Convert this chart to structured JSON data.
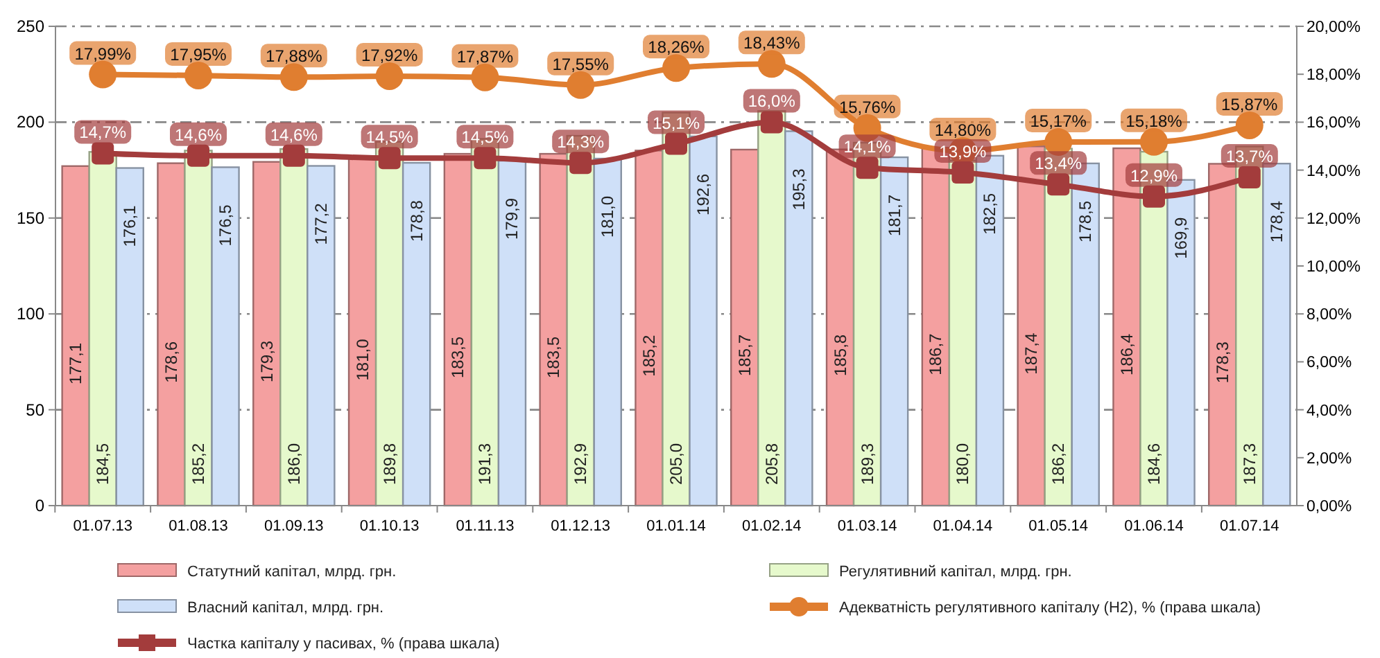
{
  "chart_data": {
    "type": "bar",
    "categories": [
      "01.07.13",
      "01.08.13",
      "01.09.13",
      "01.10.13",
      "01.11.13",
      "01.12.13",
      "01.01.14",
      "01.02.14",
      "01.03.14",
      "01.04.14",
      "01.05.14",
      "01.06.14",
      "01.07.14"
    ],
    "series": [
      {
        "name": "Статутний капітал, млрд. грн.",
        "color": "#f4a0a0",
        "values": [
          177.1,
          178.6,
          179.3,
          181.0,
          183.5,
          183.5,
          185.2,
          185.7,
          185.8,
          186.7,
          187.4,
          186.4,
          178.3
        ],
        "value_labels": [
          "177,1",
          "178,6",
          "179,3",
          "181,0",
          "183,5",
          "183,5",
          "185,2",
          "185,7",
          "185,8",
          "186,7",
          "187,4",
          "186,4",
          "178,3"
        ]
      },
      {
        "name": "Регулятивний капітал, млрд. грн.",
        "color": "#e6f9cc",
        "values": [
          184.5,
          185.2,
          186.0,
          189.8,
          191.3,
          192.9,
          205.0,
          205.8,
          189.3,
          180.0,
          186.2,
          184.6,
          187.3
        ],
        "value_labels": [
          "184,5",
          "185,2",
          "186,0",
          "189,8",
          "191,3",
          "192,9",
          "205,0",
          "205,8",
          "189,3",
          "180,0",
          "186,2",
          "184,6",
          "187,3"
        ]
      },
      {
        "name": "Власний капітал, млрд. грн.",
        "color": "#cfe0f8",
        "values": [
          176.1,
          176.5,
          177.2,
          178.8,
          179.9,
          181.0,
          192.6,
          195.3,
          181.7,
          182.5,
          178.5,
          169.9,
          178.4
        ],
        "value_labels": [
          "176,1",
          "176,5",
          "177,2",
          "178,8",
          "179,9",
          "181,0",
          "192,6",
          "195,3",
          "181,7",
          "182,5",
          "178,5",
          "169,9",
          "178,4"
        ]
      },
      {
        "name": "Адекватність регулятивного капіталу (Н2), % (права шкала)",
        "type": "line",
        "axis": "y2",
        "marker": "circle",
        "color": "#e07e30",
        "values": [
          17.99,
          17.95,
          17.88,
          17.92,
          17.87,
          17.55,
          18.26,
          18.43,
          15.76,
          14.8,
          15.17,
          15.18,
          15.87
        ],
        "value_labels": [
          "17,99%",
          "17,95%",
          "17,88%",
          "17,92%",
          "17,87%",
          "17,55%",
          "18,26%",
          "18,43%",
          "15,76%",
          "14,80%",
          "15,17%",
          "15,18%",
          "15,87%"
        ]
      },
      {
        "name": "Частка капіталу у пасивах, % (права шкала)",
        "type": "line",
        "axis": "y2",
        "marker": "square",
        "color": "#a33c3c",
        "values": [
          14.7,
          14.6,
          14.6,
          14.5,
          14.5,
          14.3,
          15.1,
          16.0,
          14.1,
          13.9,
          13.4,
          12.9,
          13.7
        ],
        "value_labels": [
          "14,7%",
          "14,6%",
          "14,6%",
          "14,5%",
          "14,5%",
          "14,3%",
          "15,1%",
          "16,0%",
          "14,1%",
          "13,9%",
          "13,4%",
          "12,9%",
          "13,7%"
        ]
      }
    ],
    "ylim": [
      0,
      250
    ],
    "yticks": [
      0,
      50,
      100,
      150,
      200,
      250
    ],
    "y2lim": [
      0,
      20
    ],
    "y2ticks": [
      {
        "value": 0,
        "label": "0,00%"
      },
      {
        "value": 2,
        "label": "2,00%"
      },
      {
        "value": 4,
        "label": "4,00%"
      },
      {
        "value": 6,
        "label": "6,00%"
      },
      {
        "value": 8,
        "label": "8,00%"
      },
      {
        "value": 10,
        "label": "10,00%"
      },
      {
        "value": 12,
        "label": "12,00%"
      },
      {
        "value": 14,
        "label": "14,00%"
      },
      {
        "value": 16,
        "label": "16,00%"
      },
      {
        "value": 18,
        "label": "18,00%"
      },
      {
        "value": 20,
        "label": "20,00%"
      }
    ],
    "grid": "y",
    "legend": "bottom",
    "line_style": "solid"
  }
}
